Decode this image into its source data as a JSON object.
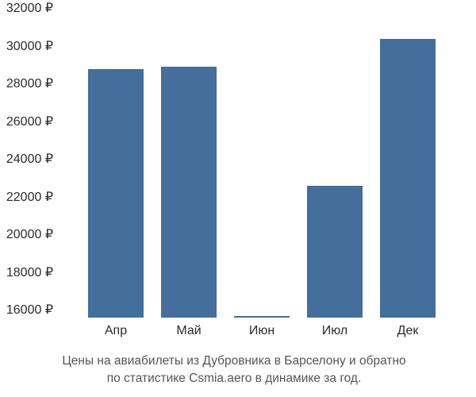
{
  "chart": {
    "type": "bar",
    "background_color": "#ffffff",
    "bar_color": "#446e9b",
    "axis_text_color": "#2b2b2b",
    "caption_color": "#555555",
    "label_fontsize": 16,
    "caption_fontsize": 15.5,
    "currency_suffix": " ₽",
    "ylim": [
      16000,
      32000
    ],
    "ytick_step": 2000,
    "yticks": [
      16000,
      18000,
      20000,
      22000,
      24000,
      26000,
      28000,
      30000,
      32000
    ],
    "categories": [
      "Апр",
      "Май",
      "Июн",
      "Июл",
      "Дек"
    ],
    "values": [
      29200,
      29300,
      16100,
      23000,
      30800
    ],
    "bar_width_ratio": 0.7,
    "caption_line1": "Цены на авиабилеты из Дубровника в Барселону и обратно",
    "caption_line2": "по статистике Csmia.aero в динамике за год."
  }
}
